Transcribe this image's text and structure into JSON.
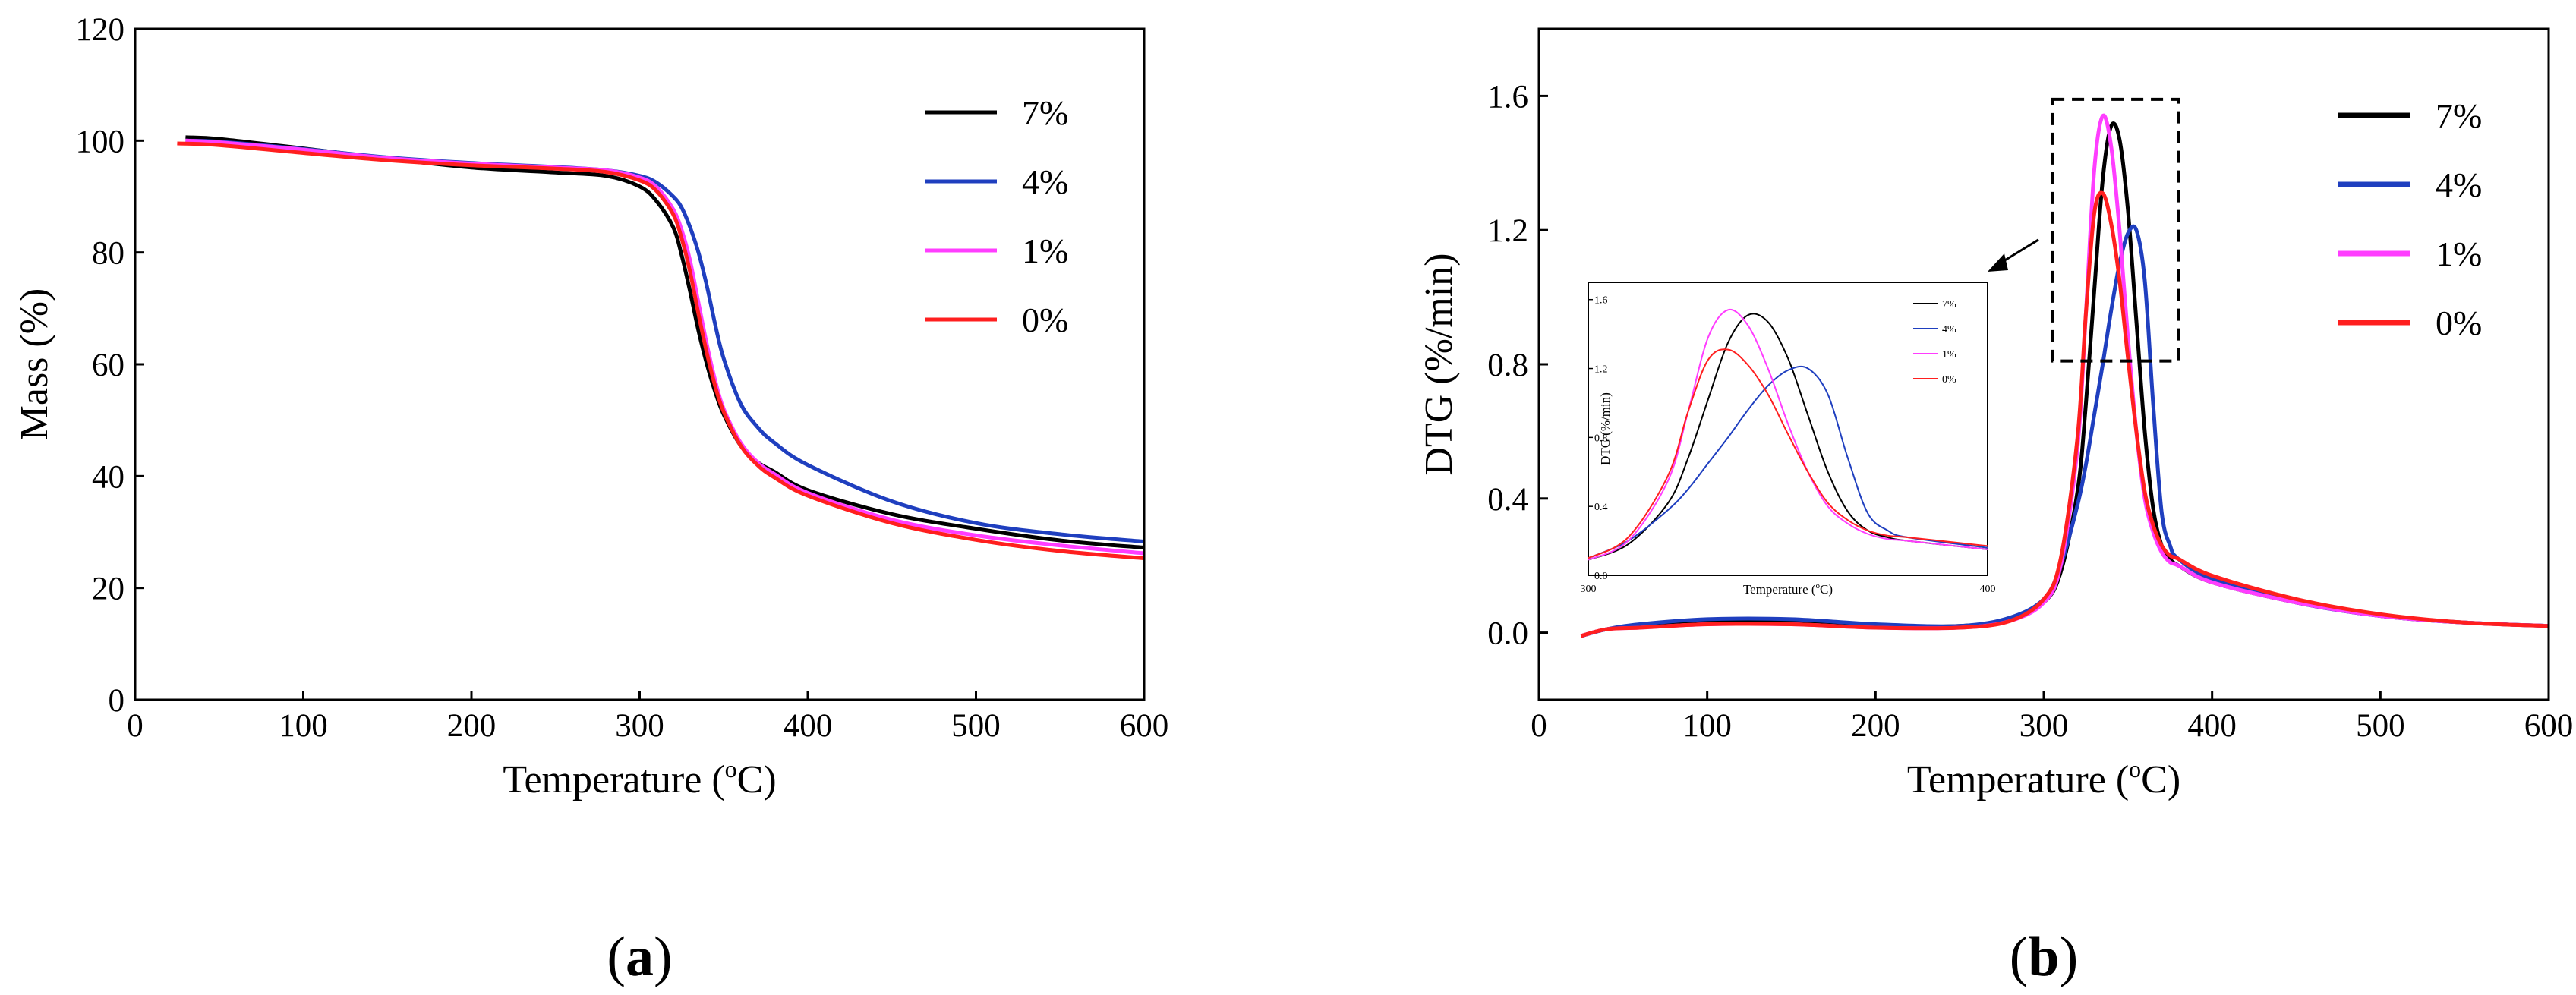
{
  "chart_data": [
    {
      "type": "line",
      "panel_label": "a",
      "xlabel": "Temperature",
      "xlabel_unit_pre": "(",
      "xlabel_unit_sup": "o",
      "xlabel_unit_post": "C)",
      "ylabel": "Mass (%)",
      "xlim": [
        0,
        600
      ],
      "ylim": [
        0,
        120
      ],
      "xticks": [
        0,
        100,
        200,
        300,
        400,
        500,
        600
      ],
      "yticks": [
        0,
        20,
        40,
        60,
        80,
        100,
        120
      ],
      "legend_position": "top-right",
      "series": [
        {
          "name": "7%",
          "color": "#000000",
          "x": [
            30,
            50,
            100,
            150,
            200,
            250,
            280,
            300,
            310,
            320,
            325,
            330,
            335,
            340,
            345,
            350,
            360,
            370,
            380,
            400,
            450,
            500,
            550,
            600
          ],
          "y": [
            100.6,
            100.3,
            98.6,
            96.8,
            95.2,
            94.3,
            93.7,
            91.8,
            89.2,
            84.5,
            79.5,
            73,
            66,
            60,
            55,
            51,
            45.5,
            42.5,
            40.8,
            37.5,
            33.2,
            30.6,
            28.5,
            27.2
          ]
        },
        {
          "name": "4%",
          "color": "#1f3fbf",
          "x": [
            30,
            50,
            100,
            150,
            200,
            250,
            280,
            300,
            310,
            320,
            325,
            330,
            335,
            340,
            345,
            350,
            360,
            370,
            380,
            400,
            450,
            500,
            550,
            600
          ],
          "y": [
            100,
            99.8,
            98.5,
            97,
            96,
            95.3,
            94.7,
            93.7,
            92.5,
            90,
            88,
            84.5,
            80,
            74,
            67,
            61,
            53,
            48.8,
            46,
            42,
            35.5,
            31.6,
            29.6,
            28.3
          ]
        },
        {
          "name": "1%",
          "color": "#ff3dff",
          "x": [
            30,
            50,
            100,
            150,
            200,
            250,
            280,
            300,
            310,
            320,
            325,
            330,
            335,
            340,
            345,
            350,
            360,
            370,
            380,
            400,
            450,
            500,
            550,
            600
          ],
          "y": [
            100,
            99.7,
            98.4,
            96.9,
            95.9,
            95.2,
            94.7,
            93.4,
            91.7,
            87.7,
            84,
            78.5,
            71,
            63.5,
            57,
            52,
            46,
            42.5,
            40.4,
            37,
            32.2,
            29.4,
            27.6,
            26.2
          ]
        },
        {
          "name": "0%",
          "color": "#ff1f1f",
          "x": [
            25,
            50,
            100,
            150,
            200,
            250,
            280,
            300,
            310,
            320,
            325,
            330,
            335,
            340,
            345,
            350,
            360,
            370,
            380,
            400,
            450,
            500,
            550,
            600
          ],
          "y": [
            99.5,
            99.2,
            97.8,
            96.5,
            95.6,
            95,
            94.4,
            92.9,
            91,
            86.8,
            82.5,
            76.5,
            69,
            62,
            56,
            51.5,
            45.5,
            42,
            39.8,
            36.5,
            31.6,
            28.6,
            26.6,
            25.3
          ]
        }
      ]
    },
    {
      "type": "line",
      "panel_label": "b",
      "xlabel": "Temperature",
      "xlabel_unit_pre": "(",
      "xlabel_unit_sup": "o",
      "xlabel_unit_post": "C)",
      "ylabel": "DTG (%/min)",
      "xlim": [
        0,
        600
      ],
      "ylim": [
        -0.2,
        1.8
      ],
      "xticks": [
        0,
        100,
        200,
        300,
        400,
        500,
        600
      ],
      "yticks": [
        "0.0",
        "0.4",
        "0.8",
        "1.2",
        "1.6"
      ],
      "ytick_values": [
        0.0,
        0.4,
        0.8,
        1.2,
        1.6
      ],
      "legend_position": "top-right",
      "highlight_box": {
        "x_range": [
          305,
          380
        ],
        "y_range": [
          0.81,
          1.59
        ]
      },
      "series": [
        {
          "name": "7%",
          "color": "#000000",
          "x": [
            25,
            40,
            60,
            100,
            150,
            200,
            250,
            280,
            300,
            310,
            320,
            325,
            330,
            335,
            340,
            345,
            350,
            355,
            360,
            365,
            370,
            375,
            380,
            400,
            450,
            500,
            550,
            600
          ],
          "y": [
            -0.01,
            0.01,
            0.02,
            0.035,
            0.035,
            0.02,
            0.02,
            0.04,
            0.09,
            0.18,
            0.42,
            0.68,
            1.02,
            1.35,
            1.51,
            1.47,
            1.26,
            0.93,
            0.6,
            0.37,
            0.26,
            0.22,
            0.2,
            0.15,
            0.09,
            0.05,
            0.03,
            0.02
          ]
        },
        {
          "name": "4%",
          "color": "#1f3fbf",
          "x": [
            25,
            40,
            60,
            100,
            150,
            200,
            250,
            280,
            300,
            310,
            320,
            325,
            330,
            335,
            340,
            345,
            350,
            355,
            360,
            365,
            370,
            375,
            380,
            400,
            450,
            500,
            550,
            600
          ],
          "y": [
            -0.01,
            0.01,
            0.025,
            0.04,
            0.04,
            0.025,
            0.02,
            0.045,
            0.1,
            0.2,
            0.38,
            0.5,
            0.65,
            0.8,
            0.96,
            1.1,
            1.19,
            1.2,
            1.05,
            0.68,
            0.36,
            0.26,
            0.22,
            0.16,
            0.09,
            0.05,
            0.03,
            0.02
          ]
        },
        {
          "name": "1%",
          "color": "#ff3dff",
          "x": [
            25,
            40,
            60,
            100,
            150,
            200,
            250,
            280,
            300,
            310,
            320,
            325,
            330,
            335,
            340,
            345,
            350,
            355,
            360,
            365,
            370,
            375,
            380,
            400,
            450,
            500,
            550,
            600
          ],
          "y": [
            -0.01,
            0.01,
            0.015,
            0.025,
            0.025,
            0.015,
            0.015,
            0.035,
            0.09,
            0.2,
            0.55,
            0.95,
            1.38,
            1.54,
            1.45,
            1.2,
            0.88,
            0.6,
            0.4,
            0.3,
            0.24,
            0.21,
            0.2,
            0.15,
            0.09,
            0.05,
            0.03,
            0.02
          ]
        },
        {
          "name": "0%",
          "color": "#ff1f1f",
          "x": [
            25,
            40,
            60,
            100,
            150,
            200,
            250,
            280,
            300,
            310,
            320,
            325,
            330,
            335,
            340,
            345,
            350,
            355,
            360,
            365,
            370,
            375,
            380,
            400,
            450,
            500,
            550,
            600
          ],
          "y": [
            -0.01,
            0.01,
            0.015,
            0.025,
            0.025,
            0.015,
            0.015,
            0.035,
            0.1,
            0.22,
            0.58,
            0.95,
            1.25,
            1.31,
            1.22,
            1.05,
            0.82,
            0.6,
            0.42,
            0.32,
            0.26,
            0.23,
            0.22,
            0.17,
            0.1,
            0.055,
            0.03,
            0.02
          ]
        }
      ],
      "inset": {
        "xlabel": "Temperature (",
        "xlabel_sup": "o",
        "xlabel_post": "C)",
        "ylabel": "DTG (%/min)",
        "xlim": [
          300,
          400
        ],
        "ylim": [
          0,
          1.7
        ],
        "xtick_labels": [
          "300",
          "400"
        ],
        "ytick_labels": [
          "0.0",
          "0.4",
          "0.8",
          "1.2",
          "1.6"
        ],
        "legend_labels": [
          "7%",
          "4%",
          "1%",
          "0%"
        ]
      }
    }
  ]
}
